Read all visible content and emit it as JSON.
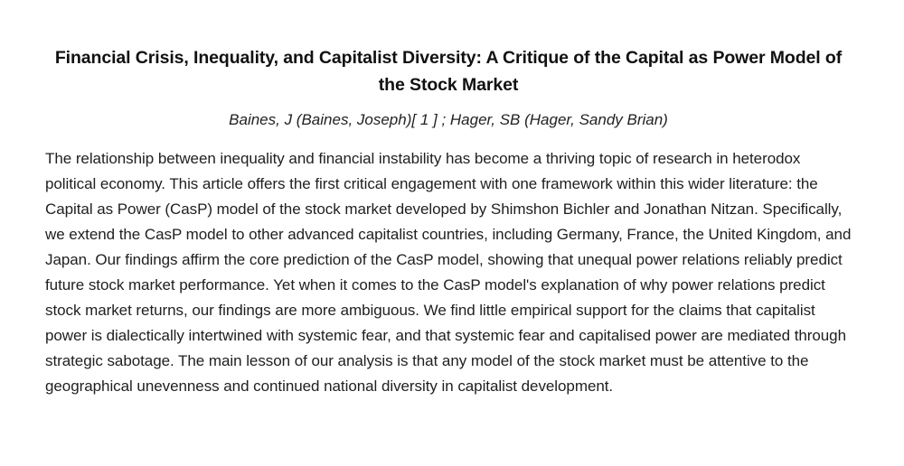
{
  "paper": {
    "title": "Financial Crisis, Inequality, and Capitalist Diversity: A Critique of the Capital as Power Model of the Stock Market",
    "authors": "Baines, J (Baines, Joseph)[ 1 ] ; Hager, SB (Hager, Sandy Brian)",
    "abstract": "The relationship between inequality and financial instability has become a thriving topic of research in heterodox political economy. This article offers the first critical engagement with one framework within this wider literature: the Capital as Power (CasP) model of the stock market developed by Shimshon Bichler and Jonathan Nitzan. Specifically, we extend the CasP model to other advanced capitalist countries, including Germany, France, the United Kingdom, and Japan. Our findings affirm the core prediction of the CasP model, showing that unequal power relations reliably predict future stock market performance. Yet when it comes to the CasP model's explanation of why power relations predict stock market returns, our findings are more ambiguous. We find little empirical support for the claims that capitalist power is dialectically intertwined with systemic fear, and that systemic fear and capitalised power are mediated through strategic sabotage. The main lesson of our analysis is that any model of the stock market must be attentive to the geographical unevenness and continued national diversity in capitalist development."
  }
}
